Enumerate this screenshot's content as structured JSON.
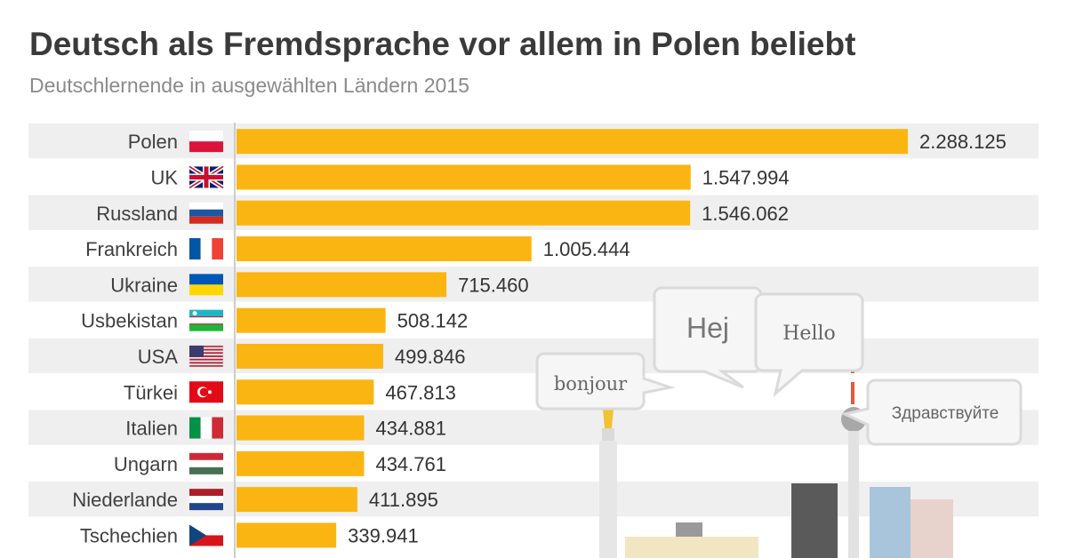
{
  "header": {
    "title": "Deutsch als Fremdsprache vor allem in Polen beliebt",
    "subtitle": "Deutschlernende in ausgewählten Ländern 2015"
  },
  "colors": {
    "bar": "#fbb512",
    "stripe": "#efefef",
    "label": "#404040",
    "value": "#333333",
    "axis": "#cccccc"
  },
  "chart_data": {
    "type": "bar",
    "orientation": "horizontal",
    "title": "Deutsch als Fremdsprache vor allem in Polen beliebt",
    "subtitle": "Deutschlernende in ausgewählten Ländern 2015",
    "xlabel": "",
    "ylabel": "",
    "xlim": [
      0,
      2288125
    ],
    "categories": [
      "Polen",
      "UK",
      "Russland",
      "Frankreich",
      "Ukraine",
      "Usbekistan",
      "USA",
      "Türkei",
      "Italien",
      "Ungarn",
      "Niederlande",
      "Tschechien"
    ],
    "values": [
      2288125,
      1547994,
      1546062,
      1005444,
      715460,
      508142,
      499846,
      467813,
      434881,
      434761,
      411895,
      339941
    ],
    "value_labels": [
      "2.288.125",
      "1.547.994",
      "1.546.062",
      "1.005.444",
      "715.460",
      "508.142",
      "499.846",
      "467.813",
      "434.881",
      "434.761",
      "411.895",
      "339.941"
    ],
    "flag_icons": [
      "poland-flag-icon",
      "uk-flag-icon",
      "russia-flag-icon",
      "france-flag-icon",
      "ukraine-flag-icon",
      "uzbekistan-flag-icon",
      "usa-flag-icon",
      "turkey-flag-icon",
      "italy-flag-icon",
      "hungary-flag-icon",
      "netherlands-flag-icon",
      "czechia-flag-icon"
    ]
  },
  "illustration": {
    "bubbles": [
      "bonjour",
      "Hej",
      "Hello",
      "Здравствуйте"
    ]
  }
}
